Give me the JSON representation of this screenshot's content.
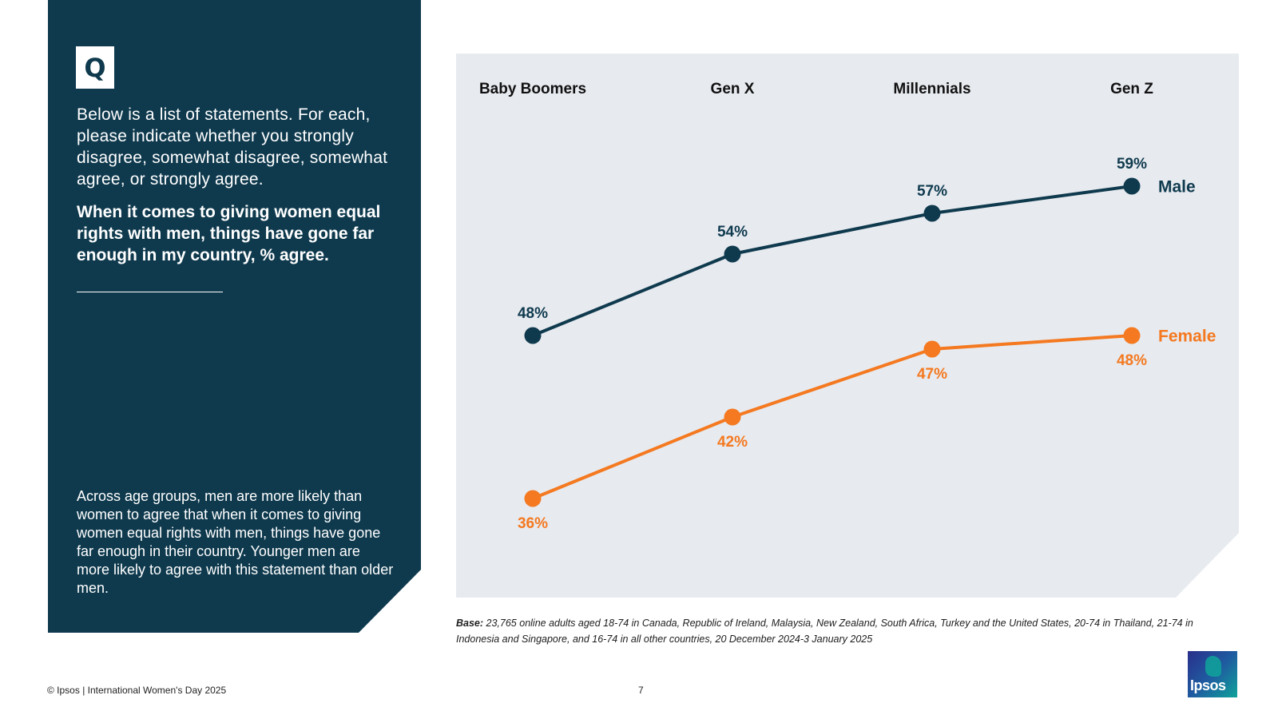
{
  "question_marker": "Q",
  "question_text": "Below is a list of statements. For each, please indicate whether you strongly disagree, somewhat disagree, somewhat agree, or strongly agree.",
  "question_bold": "When it comes to giving women equal rights with men, things have gone far enough in my country, % agree.",
  "summary": "Across age groups, men are more likely than women to agree that when it comes to giving women equal rights with men, things have gone far enough in their country. Younger men are more likely to agree with this statement than older men.",
  "base_label": "Base:",
  "base_text": "23,765 online adults aged 18-74 in Canada, Republic of Ireland, Malaysia, New Zealand, South Africa, Turkey and the United States, 20-74 in Thailand, 21-74 in Indonesia and Singapore, and 16-74 in all other countries, 20 December 2024-3 January 2025",
  "footer": "© Ipsos | International Women's Day 2025",
  "page_number": "7",
  "logo_text": "Ipsos",
  "colors": {
    "panel": "#0f3a4e",
    "male": "#0f3a4e",
    "female": "#f47920",
    "chart_bg": "#e7eaef"
  },
  "chart_data": {
    "type": "line",
    "categories": [
      "Baby Boomers",
      "Gen X",
      "Millennials",
      "Gen Z"
    ],
    "series": [
      {
        "name": "Male",
        "values": [
          48,
          54,
          57,
          59
        ],
        "labels": [
          "48%",
          "54%",
          "57%",
          "59%"
        ],
        "color": "#0f3a4e"
      },
      {
        "name": "Female",
        "values": [
          36,
          42,
          47,
          48
        ],
        "labels": [
          "36%",
          "42%",
          "47%",
          "48%"
        ],
        "color": "#f47920"
      }
    ],
    "unit": "%",
    "grid": false,
    "legend": "inline labels at line ends"
  }
}
